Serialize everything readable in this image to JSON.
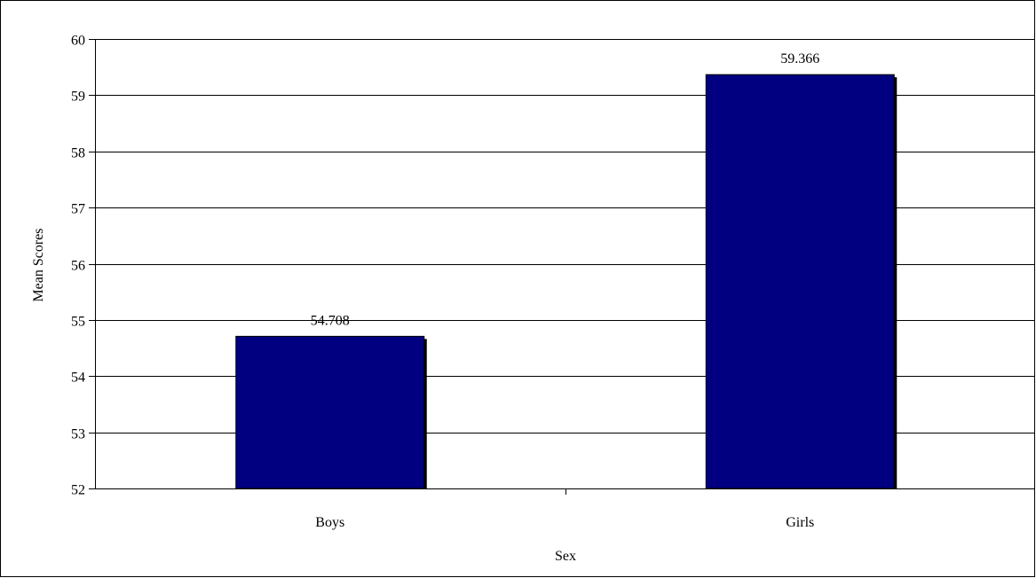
{
  "chart_data": {
    "type": "bar",
    "title": "",
    "xlabel": "Sex",
    "ylabel": "Mean Scores",
    "categories": [
      "Boys",
      "Girls"
    ],
    "series": [
      {
        "values": [
          54.708,
          59.366
        ],
        "data_labels": [
          "54.708",
          "59.366"
        ]
      }
    ],
    "ylim": [
      52,
      60
    ],
    "yticks": [
      52,
      53,
      54,
      55,
      56,
      57,
      58,
      59,
      60
    ],
    "grid": true,
    "legend": "none",
    "colors": {
      "bar_fill": "#000080",
      "bar_shadow": "#000000",
      "gridline": "#000000",
      "background": "#ffffff"
    }
  }
}
